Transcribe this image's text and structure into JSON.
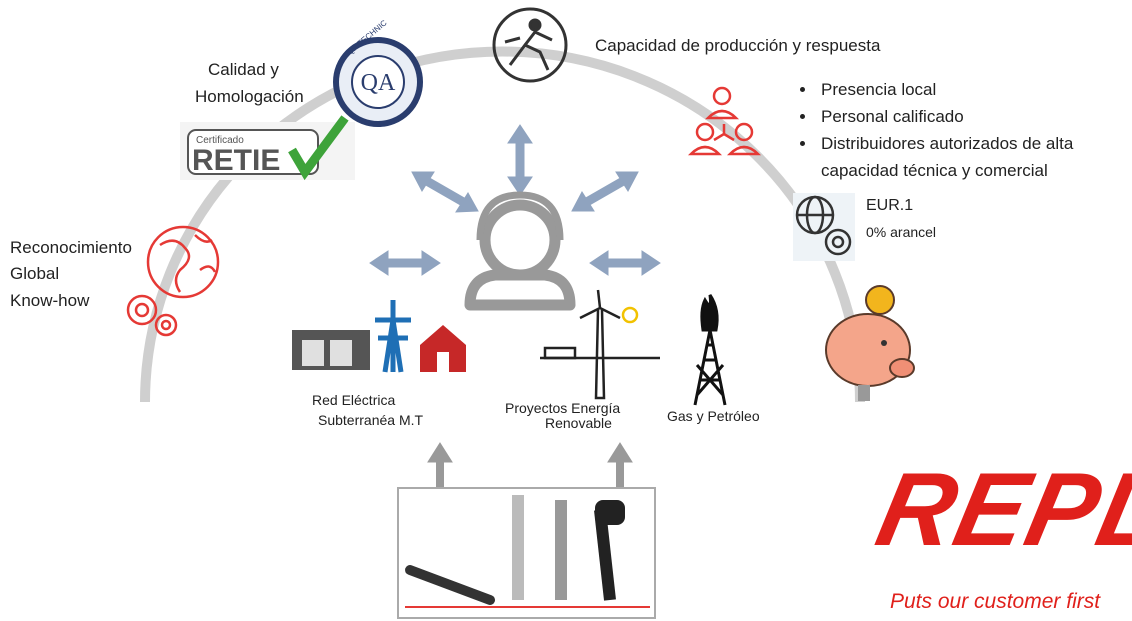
{
  "top": {
    "title": "Capacidad de producción y respuesta"
  },
  "quality": {
    "lines": [
      "Calidad y",
      "Homologación"
    ],
    "qa_logo": "QA",
    "qa_ring": "QA TECHNIC",
    "cert_small": "Certificado",
    "cert_big": "RETIE"
  },
  "local": {
    "bullets": [
      "Presencia local",
      "Personal calificado",
      "Distribuidores autorizados de alta capacidad técnica y comercial"
    ]
  },
  "trade": {
    "lines": [
      "EUR.1",
      "0% arancel"
    ]
  },
  "global": {
    "lines": [
      "Reconocimiento",
      "Global",
      "Know-how"
    ]
  },
  "sectors": [
    {
      "lines": [
        "Red Eléctrica",
        "Subterranéa M.T"
      ]
    },
    {
      "lines": [
        "Proyectos Energía",
        "Renovable"
      ]
    },
    {
      "lines": [
        "Gas y Petróleo"
      ]
    }
  ],
  "brand": {
    "logo": "REPL",
    "slogan": "Puts our customer first"
  }
}
